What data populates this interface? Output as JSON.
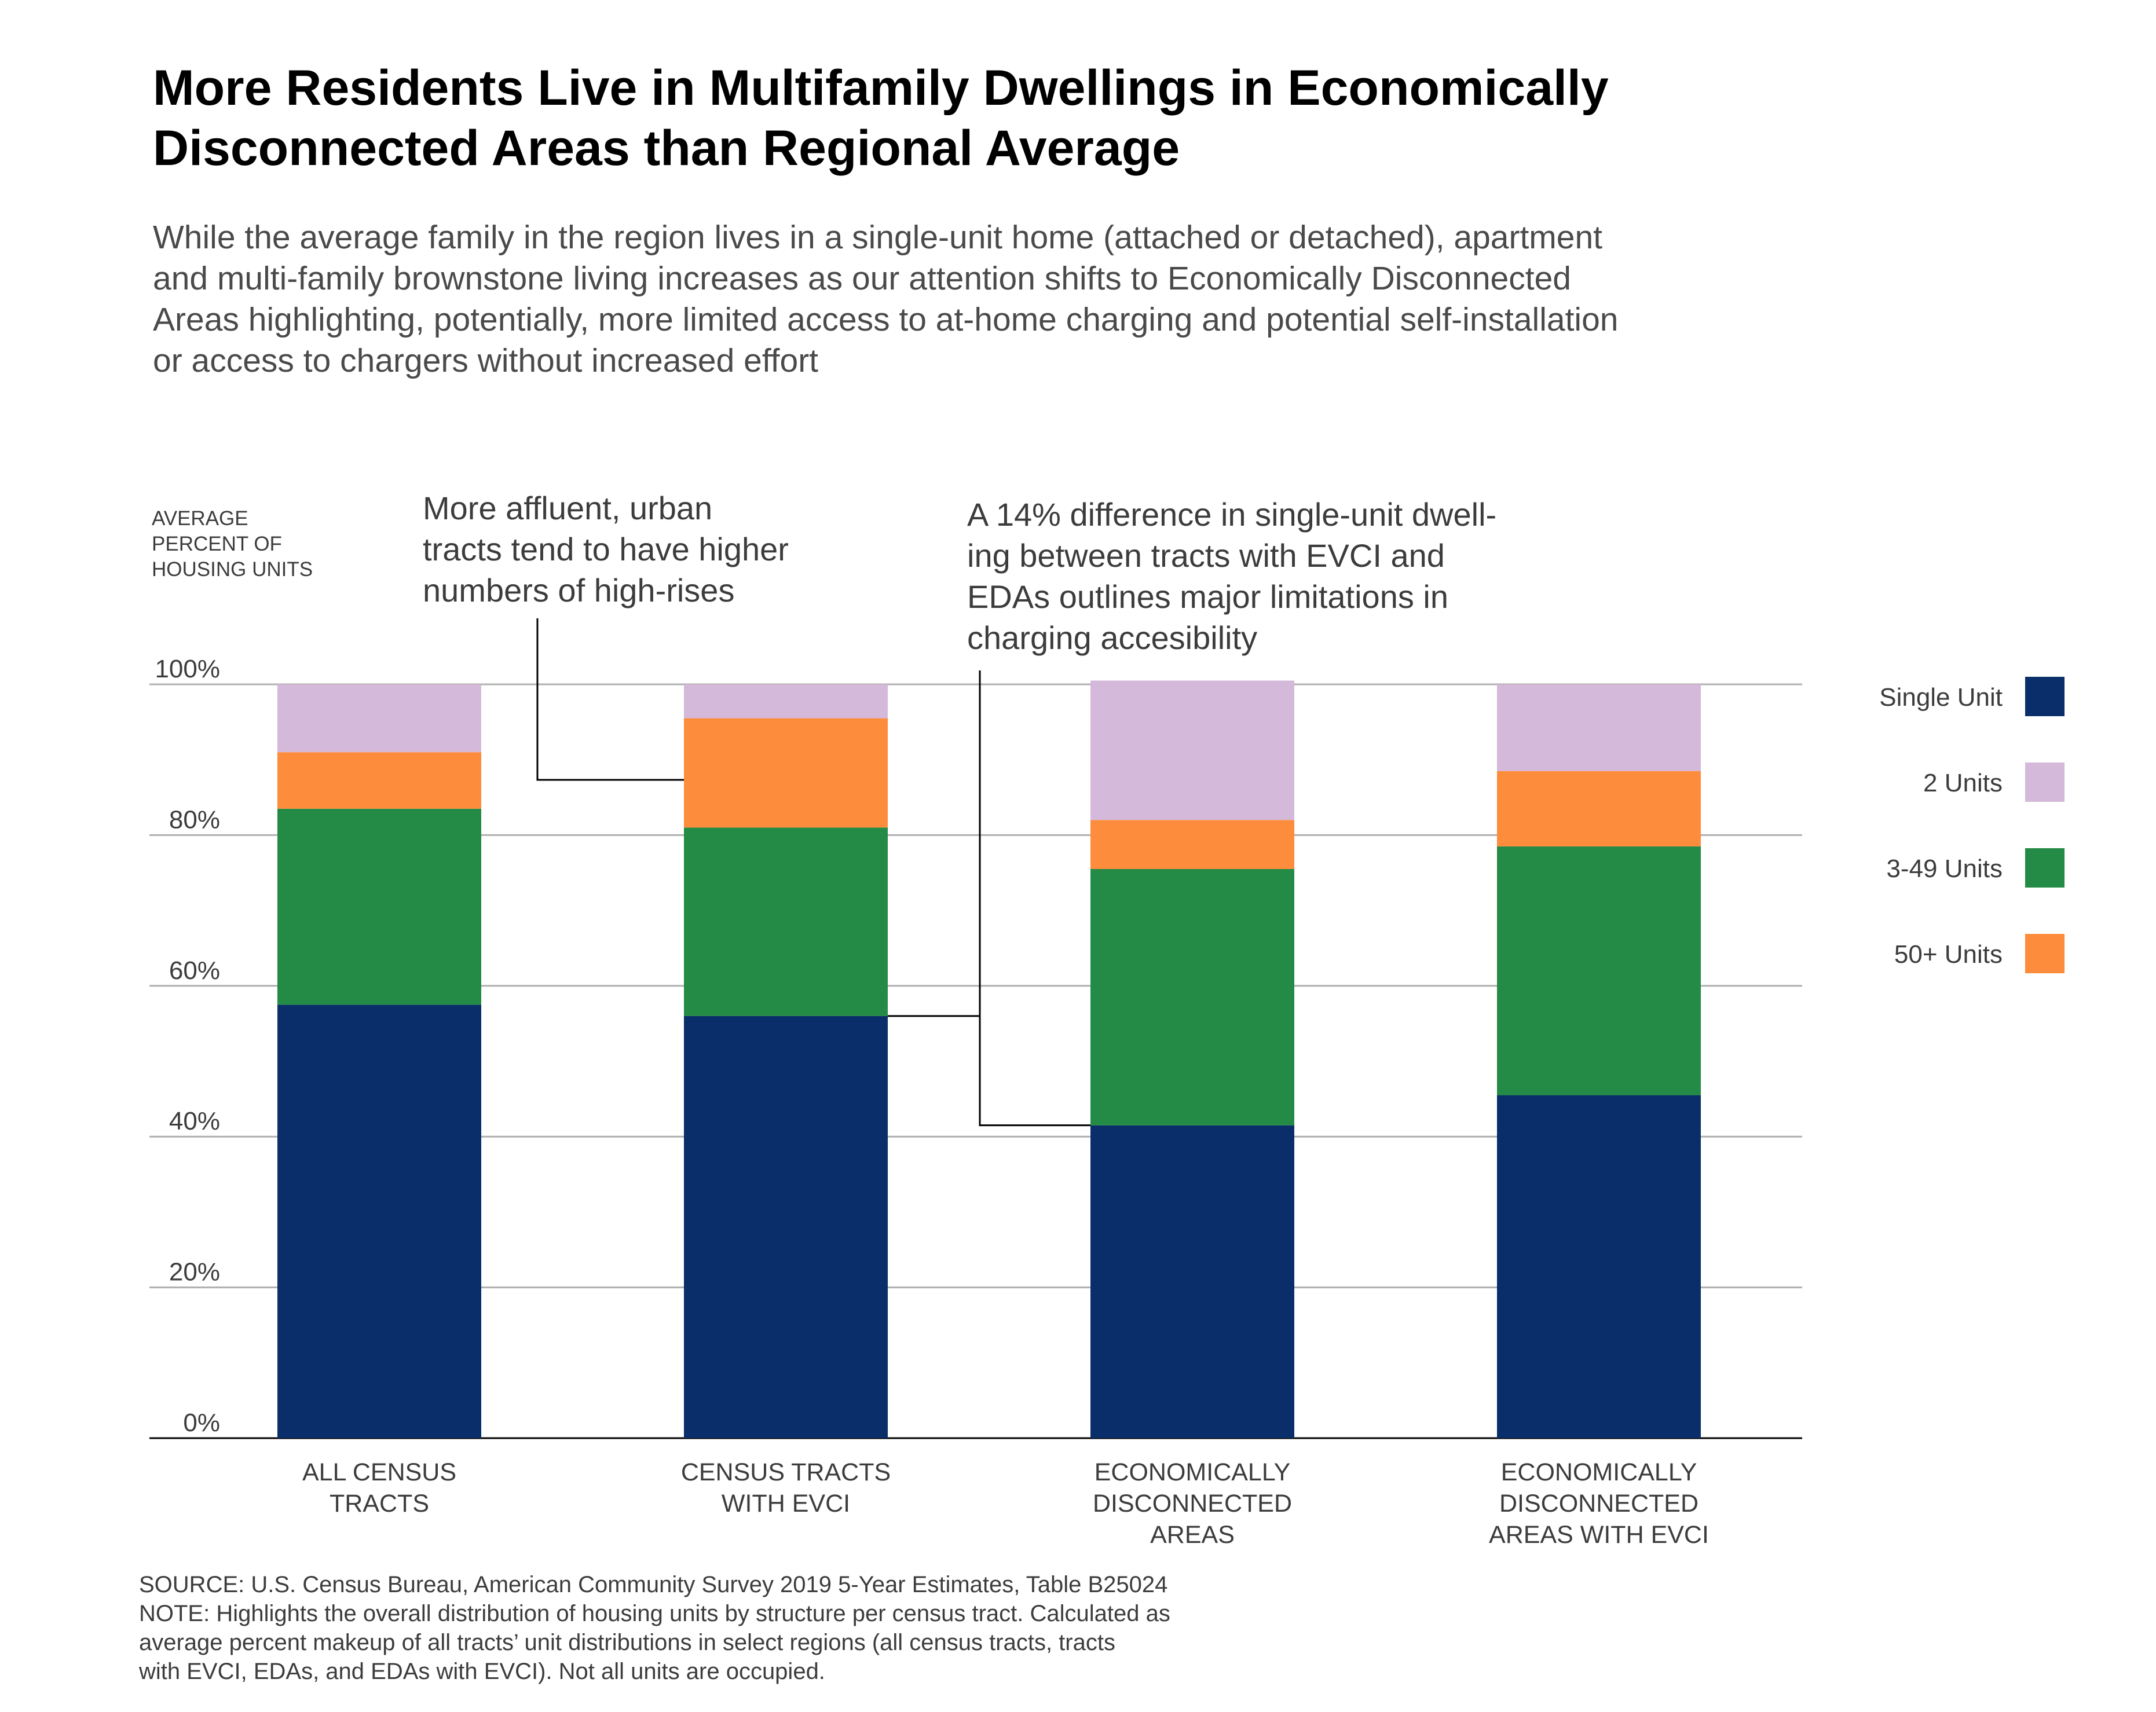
{
  "title_lines": [
    "More Residents Live in Multifamily Dwellings in Economically",
    "Disconnected Areas than Regional Average"
  ],
  "subtitle_lines": [
    "While the average family in the region lives in a single-unit home (attached or detached), apartment",
    "and multi-family brownstone living increases as our attention shifts to Economically Disconnected",
    "Areas highlighting, potentially, more limited access to at-home charging and potential self-installation",
    "or access to chargers without increased effort"
  ],
  "chart_data": {
    "type": "bar",
    "stacked": true,
    "ylabel_lines": [
      "AVERAGE",
      "PERCENT OF",
      "HOUSING UNITS"
    ],
    "ylim": [
      0,
      100
    ],
    "yticks": [
      0,
      20,
      40,
      60,
      80,
      100
    ],
    "ytick_labels": [
      "0%",
      "20%",
      "40%",
      "60%",
      "80%",
      "100%"
    ],
    "grid": true,
    "legend_position": "right",
    "categories": [
      [
        "ALL CENSUS",
        "TRACTS"
      ],
      [
        "CENSUS TRACTS",
        "WITH EVCI"
      ],
      [
        "ECONOMICALLY",
        "DISCONNECTED",
        "AREAS"
      ],
      [
        "ECONOMICALLY",
        "DISCONNECTED",
        "AREAS WITH EVCI"
      ]
    ],
    "series": [
      {
        "name": "Single Unit",
        "color": "#0a2e69",
        "values": [
          57.5,
          56,
          41.5,
          45.5
        ]
      },
      {
        "name": "3-49 Units",
        "color": "#238b45",
        "values": [
          26,
          25,
          34,
          33
        ]
      },
      {
        "name": "50+ Units",
        "color": "#fd8d3c",
        "values": [
          7.5,
          14.5,
          6.5,
          10
        ]
      },
      {
        "name": "2 Units",
        "color": "#d4b9da",
        "values": [
          9,
          4.5,
          18.5,
          11.5
        ]
      }
    ],
    "legend_order": [
      "Single Unit",
      "2 Units",
      "3-49 Units",
      "50+ Units"
    ],
    "annotations": [
      {
        "lines": [
          "More affluent, urban",
          "tracts tend to have higher",
          "numbers of high-rises"
        ]
      },
      {
        "lines": [
          "A 14% difference in single-unit dwell-",
          "ing between tracts with EVCI and",
          "EDAs outlines major limitations in",
          "charging accesibility"
        ]
      }
    ]
  },
  "footnote_lines": [
    "SOURCE: U.S. Census Bureau, American Community Survey 2019 5-Year Estimates, Table B25024",
    "NOTE: Highlights the overall distribution of housing units by structure per census tract. Calculated as",
    "average percent makeup of all tracts’ unit distributions in select regions (all census tracts, tracts",
    "with EVCI, EDAs, and EDAs with EVCI). Not all units are occupied."
  ]
}
